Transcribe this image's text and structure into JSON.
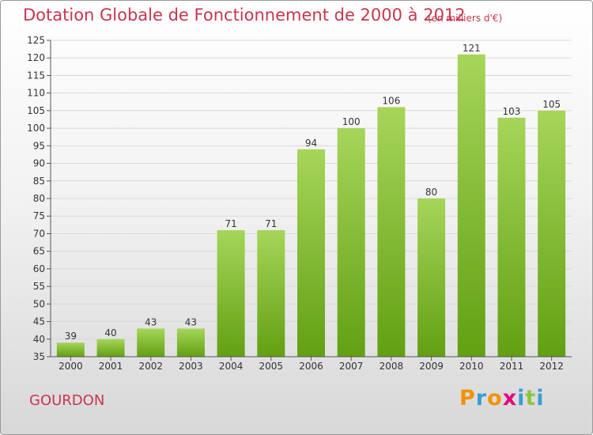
{
  "header": {
    "title": "Dotation Globale de Fonctionnement de 2000 à 2012",
    "unit": "(en milliers d'€)"
  },
  "footer": {
    "location": "GOURDON",
    "brand": "Proxiti"
  },
  "colors": {
    "accent": "#c8364e",
    "bar_top": "#a6d55a",
    "bar_bottom": "#62a012",
    "axis": "#555555",
    "grid": "#d8d8d8",
    "brand_letters": [
      "#f39200",
      "#3a9bd6",
      "#f39200",
      "#e5007e",
      "#3a9bd6",
      "#8cc63f",
      "#3a9bd6"
    ]
  },
  "chart_data": {
    "type": "bar",
    "title": "Dotation Globale de Fonctionnement de 2000 à 2012",
    "subtitle": "(en milliers d'€)",
    "xlabel": "",
    "ylabel": "",
    "categories": [
      "2000",
      "2001",
      "2002",
      "2003",
      "2004",
      "2005",
      "2006",
      "2007",
      "2008",
      "2009",
      "2010",
      "2011",
      "2012"
    ],
    "values": [
      39,
      40,
      43,
      43,
      71,
      71,
      94,
      100,
      106,
      80,
      121,
      103,
      105
    ],
    "ylim": [
      35,
      125
    ],
    "yticks": [
      35,
      40,
      45,
      50,
      55,
      60,
      65,
      70,
      75,
      80,
      85,
      90,
      95,
      100,
      105,
      110,
      115,
      120,
      125
    ],
    "grid": true,
    "data_labels": true
  }
}
